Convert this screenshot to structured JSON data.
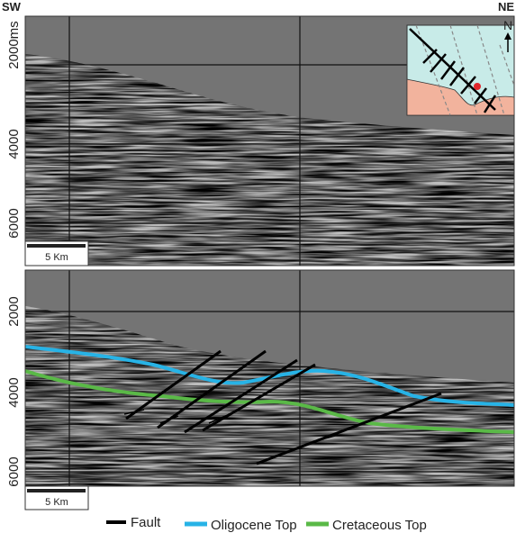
{
  "orientation": {
    "left": "SW",
    "right": "NE"
  },
  "panels": [
    {
      "depth_labels": [
        "2000ms",
        "4000",
        "6000"
      ],
      "scale_bar": "5 Km"
    },
    {
      "depth_labels": [
        "2000",
        "4000",
        "6000"
      ],
      "scale_bar": "5 Km"
    }
  ],
  "inset": {
    "north": "N"
  },
  "legend": [
    {
      "label": "Fault"
    },
    {
      "label": "Oligocene Top"
    },
    {
      "label": "Cretaceous Top"
    }
  ]
}
